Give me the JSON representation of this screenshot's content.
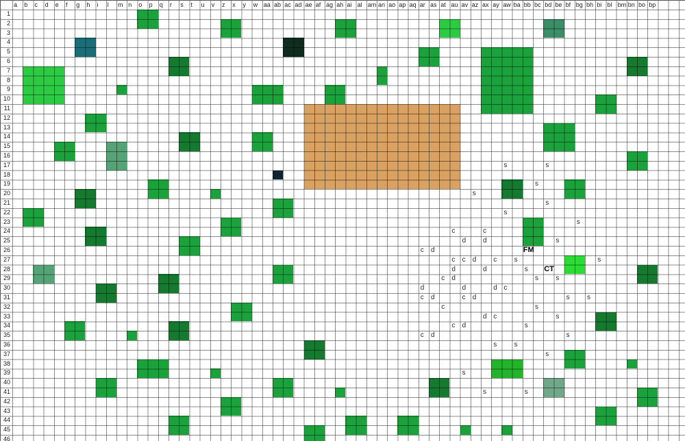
{
  "grid": {
    "columns": [
      "a",
      "b",
      "c",
      "d",
      "e",
      "f",
      "g",
      "h",
      "i",
      "l",
      "m",
      "n",
      "o",
      "p",
      "q",
      "r",
      "s",
      "t",
      "u",
      "v",
      "z",
      "x",
      "y",
      "w",
      "aa",
      "ab",
      "ac",
      "ad",
      "ae",
      "af",
      "ag",
      "ah",
      "ai",
      "al",
      "am",
      "an",
      "ao",
      "ap",
      "aq",
      "ar",
      "as",
      "at",
      "au",
      "av",
      "az",
      "ax",
      "ay",
      "aw",
      "ba",
      "bb",
      "bc",
      "bd",
      "be",
      "bf",
      "bg",
      "bh",
      "bi",
      "bl",
      "bm",
      "bn",
      "bo",
      "bp"
    ],
    "row_count": 46
  },
  "colors": {
    "green": "#1CA23C",
    "bright": "#2DCB44",
    "vivid": "#2CDC35",
    "medium": "#24B42C",
    "dark": "#157A30",
    "teal": "#1A6E79",
    "blackgreen": "#0F2D1E",
    "blacknavy": "#0D2533",
    "sea": "#55A478",
    "seadark": "#3A8E68",
    "sealight": "#6FA98A",
    "tan": "#D9A263"
  },
  "blocks": [
    {
      "c": "o",
      "r": 1,
      "w": 2,
      "h": 2,
      "color": "green"
    },
    {
      "c": "z",
      "r": 2,
      "w": 2,
      "h": 2,
      "color": "green"
    },
    {
      "c": "ah",
      "r": 2,
      "w": 2,
      "h": 2,
      "color": "green"
    },
    {
      "c": "at",
      "r": 2,
      "w": 2,
      "h": 2,
      "color": "bright"
    },
    {
      "c": "bd",
      "r": 2,
      "w": 2,
      "h": 2,
      "color": "seadark"
    },
    {
      "c": "g",
      "r": 4,
      "w": 2,
      "h": 2,
      "color": "teal"
    },
    {
      "c": "ac",
      "r": 4,
      "w": 2,
      "h": 2,
      "color": "blackgreen"
    },
    {
      "c": "ar",
      "r": 5,
      "w": 2,
      "h": 2,
      "color": "green"
    },
    {
      "c": "ax",
      "r": 5,
      "w": 5,
      "h": 7,
      "color": "green"
    },
    {
      "c": "r",
      "r": 6,
      "w": 2,
      "h": 2,
      "color": "dark"
    },
    {
      "c": "bn",
      "r": 6,
      "w": 2,
      "h": 2,
      "color": "dark"
    },
    {
      "c": "b",
      "r": 7,
      "w": 4,
      "h": 4,
      "color": "bright"
    },
    {
      "c": "an",
      "r": 7,
      "w": 1,
      "h": 2,
      "color": "green"
    },
    {
      "c": "m",
      "r": 9,
      "w": 1,
      "h": 1,
      "color": "green"
    },
    {
      "c": "w",
      "r": 9,
      "w": 3,
      "h": 2,
      "color": "green"
    },
    {
      "c": "ag",
      "r": 9,
      "w": 2,
      "h": 2,
      "color": "green"
    },
    {
      "c": "bi",
      "r": 10,
      "w": 2,
      "h": 2,
      "color": "green"
    },
    {
      "c": "ae",
      "r": 11,
      "w": 15,
      "h": 9,
      "color": "tan"
    },
    {
      "c": "h",
      "r": 12,
      "w": 2,
      "h": 2,
      "color": "green"
    },
    {
      "c": "bd",
      "r": 13,
      "w": 3,
      "h": 3,
      "color": "green"
    },
    {
      "c": "w",
      "r": 14,
      "w": 2,
      "h": 2,
      "color": "green"
    },
    {
      "c": "s",
      "r": 14,
      "w": 2,
      "h": 2,
      "color": "dark"
    },
    {
      "c": "e",
      "r": 15,
      "w": 2,
      "h": 2,
      "color": "green"
    },
    {
      "c": "l",
      "r": 15,
      "w": 2,
      "h": 3,
      "color": "sea"
    },
    {
      "c": "bn",
      "r": 16,
      "w": 2,
      "h": 2,
      "color": "green"
    },
    {
      "c": "ab",
      "r": 18,
      "w": 1,
      "h": 1,
      "color": "blacknavy"
    },
    {
      "c": "p",
      "r": 19,
      "w": 2,
      "h": 2,
      "color": "green"
    },
    {
      "c": "aw",
      "r": 19,
      "w": 2,
      "h": 2,
      "color": "dark"
    },
    {
      "c": "bf",
      "r": 19,
      "w": 2,
      "h": 2,
      "color": "green"
    },
    {
      "c": "g",
      "r": 20,
      "w": 2,
      "h": 2,
      "color": "dark"
    },
    {
      "c": "v",
      "r": 20,
      "w": 1,
      "h": 1,
      "color": "green"
    },
    {
      "c": "ab",
      "r": 21,
      "w": 2,
      "h": 2,
      "color": "green"
    },
    {
      "c": "b",
      "r": 22,
      "w": 2,
      "h": 2,
      "color": "green"
    },
    {
      "c": "z",
      "r": 23,
      "w": 2,
      "h": 2,
      "color": "green"
    },
    {
      "c": "bb",
      "r": 23,
      "w": 2,
      "h": 3,
      "color": "green"
    },
    {
      "c": "h",
      "r": 24,
      "w": 2,
      "h": 2,
      "color": "dark"
    },
    {
      "c": "s",
      "r": 25,
      "w": 2,
      "h": 2,
      "color": "green"
    },
    {
      "c": "bf",
      "r": 27,
      "w": 2,
      "h": 2,
      "color": "vivid"
    },
    {
      "c": "c",
      "r": 28,
      "w": 2,
      "h": 2,
      "color": "sea"
    },
    {
      "c": "ab",
      "r": 28,
      "w": 2,
      "h": 2,
      "color": "green"
    },
    {
      "c": "bo",
      "r": 28,
      "w": 2,
      "h": 2,
      "color": "dark"
    },
    {
      "c": "q",
      "r": 29,
      "w": 2,
      "h": 2,
      "color": "dark"
    },
    {
      "c": "i",
      "r": 30,
      "w": 2,
      "h": 2,
      "color": "dark"
    },
    {
      "c": "x",
      "r": 32,
      "w": 2,
      "h": 2,
      "color": "green"
    },
    {
      "c": "bi",
      "r": 33,
      "w": 2,
      "h": 2,
      "color": "dark"
    },
    {
      "c": "f",
      "r": 34,
      "w": 2,
      "h": 2,
      "color": "green"
    },
    {
      "c": "r",
      "r": 34,
      "w": 2,
      "h": 2,
      "color": "dark"
    },
    {
      "c": "n",
      "r": 35,
      "w": 1,
      "h": 1,
      "color": "green"
    },
    {
      "c": "ae",
      "r": 36,
      "w": 2,
      "h": 2,
      "color": "dark"
    },
    {
      "c": "bf",
      "r": 37,
      "w": 2,
      "h": 2,
      "color": "green"
    },
    {
      "c": "o",
      "r": 38,
      "w": 3,
      "h": 2,
      "color": "green"
    },
    {
      "c": "ay",
      "r": 38,
      "w": 3,
      "h": 2,
      "color": "medium"
    },
    {
      "c": "bn",
      "r": 38,
      "w": 1,
      "h": 1,
      "color": "green"
    },
    {
      "c": "v",
      "r": 39,
      "w": 1,
      "h": 1,
      "color": "green"
    },
    {
      "c": "i",
      "r": 40,
      "w": 2,
      "h": 2,
      "color": "green"
    },
    {
      "c": "ab",
      "r": 40,
      "w": 2,
      "h": 2,
      "color": "green"
    },
    {
      "c": "as",
      "r": 40,
      "w": 2,
      "h": 2,
      "color": "dark"
    },
    {
      "c": "bd",
      "r": 40,
      "w": 2,
      "h": 2,
      "color": "sealight"
    },
    {
      "c": "ah",
      "r": 41,
      "w": 1,
      "h": 1,
      "color": "green"
    },
    {
      "c": "bo",
      "r": 41,
      "w": 2,
      "h": 2,
      "color": "green"
    },
    {
      "c": "z",
      "r": 42,
      "w": 2,
      "h": 2,
      "color": "green"
    },
    {
      "c": "bi",
      "r": 43,
      "w": 2,
      "h": 2,
      "color": "green"
    },
    {
      "c": "ai",
      "r": 44,
      "w": 2,
      "h": 2,
      "color": "green"
    },
    {
      "c": "ap",
      "r": 44,
      "w": 2,
      "h": 2,
      "color": "green"
    },
    {
      "c": "r",
      "r": 44,
      "w": 2,
      "h": 2,
      "color": "green"
    },
    {
      "c": "av",
      "r": 45,
      "w": 1,
      "h": 1,
      "color": "green"
    },
    {
      "c": "aw",
      "r": 45,
      "w": 1,
      "h": 1,
      "color": "green"
    },
    {
      "c": "ae",
      "r": 45,
      "w": 2,
      "h": 2,
      "color": "green"
    }
  ],
  "labels": [
    {
      "c": "aw",
      "r": 17,
      "t": "s"
    },
    {
      "c": "bd",
      "r": 17,
      "t": "s"
    },
    {
      "c": "bc",
      "r": 19,
      "t": "s"
    },
    {
      "c": "az",
      "r": 20,
      "t": "s"
    },
    {
      "c": "bd",
      "r": 21,
      "t": "s"
    },
    {
      "c": "aw",
      "r": 22,
      "t": "s"
    },
    {
      "c": "bg",
      "r": 23,
      "t": "s"
    },
    {
      "c": "au",
      "r": 24,
      "t": "c"
    },
    {
      "c": "ax",
      "r": 24,
      "t": "c"
    },
    {
      "c": "av",
      "r": 25,
      "t": "d"
    },
    {
      "c": "ax",
      "r": 25,
      "t": "d"
    },
    {
      "c": "be",
      "r": 25,
      "t": "s"
    },
    {
      "c": "ar",
      "r": 26,
      "t": "c"
    },
    {
      "c": "as",
      "r": 26,
      "t": "d"
    },
    {
      "c": "bb",
      "r": 26,
      "t": "FM",
      "bold": true
    },
    {
      "c": "au",
      "r": 27,
      "t": "c"
    },
    {
      "c": "av",
      "r": 27,
      "t": "c"
    },
    {
      "c": "az",
      "r": 27,
      "t": "d"
    },
    {
      "c": "ay",
      "r": 27,
      "t": "c"
    },
    {
      "c": "ba",
      "r": 27,
      "t": "s"
    },
    {
      "c": "bi",
      "r": 27,
      "t": "s"
    },
    {
      "c": "au",
      "r": 28,
      "t": "d"
    },
    {
      "c": "ax",
      "r": 28,
      "t": "d"
    },
    {
      "c": "bb",
      "r": 28,
      "t": "s"
    },
    {
      "c": "bd",
      "r": 28,
      "t": "CT",
      "bold": true
    },
    {
      "c": "at",
      "r": 29,
      "t": "c"
    },
    {
      "c": "au",
      "r": 29,
      "t": "d"
    },
    {
      "c": "bc",
      "r": 29,
      "t": "s"
    },
    {
      "c": "be",
      "r": 29,
      "t": "s"
    },
    {
      "c": "ar",
      "r": 30,
      "t": "d"
    },
    {
      "c": "av",
      "r": 30,
      "t": "d"
    },
    {
      "c": "ay",
      "r": 30,
      "t": "d"
    },
    {
      "c": "aw",
      "r": 30,
      "t": "c"
    },
    {
      "c": "ar",
      "r": 31,
      "t": "c"
    },
    {
      "c": "as",
      "r": 31,
      "t": "d"
    },
    {
      "c": "av",
      "r": 31,
      "t": "c"
    },
    {
      "c": "az",
      "r": 31,
      "t": "d"
    },
    {
      "c": "bf",
      "r": 31,
      "t": "s"
    },
    {
      "c": "bh",
      "r": 31,
      "t": "s"
    },
    {
      "c": "at",
      "r": 32,
      "t": "c"
    },
    {
      "c": "bc",
      "r": 32,
      "t": "s"
    },
    {
      "c": "ax",
      "r": 33,
      "t": "d"
    },
    {
      "c": "ay",
      "r": 33,
      "t": "c"
    },
    {
      "c": "be",
      "r": 33,
      "t": "s"
    },
    {
      "c": "au",
      "r": 34,
      "t": "c"
    },
    {
      "c": "av",
      "r": 34,
      "t": "d"
    },
    {
      "c": "bb",
      "r": 34,
      "t": "s"
    },
    {
      "c": "ar",
      "r": 35,
      "t": "c"
    },
    {
      "c": "as",
      "r": 35,
      "t": "d"
    },
    {
      "c": "bf",
      "r": 35,
      "t": "s"
    },
    {
      "c": "ay",
      "r": 36,
      "t": "s"
    },
    {
      "c": "ba",
      "r": 36,
      "t": "s"
    },
    {
      "c": "bd",
      "r": 37,
      "t": "s"
    },
    {
      "c": "av",
      "r": 39,
      "t": "s"
    },
    {
      "c": "ax",
      "r": 41,
      "t": "s"
    },
    {
      "c": "bb",
      "r": 41,
      "t": "s"
    }
  ]
}
